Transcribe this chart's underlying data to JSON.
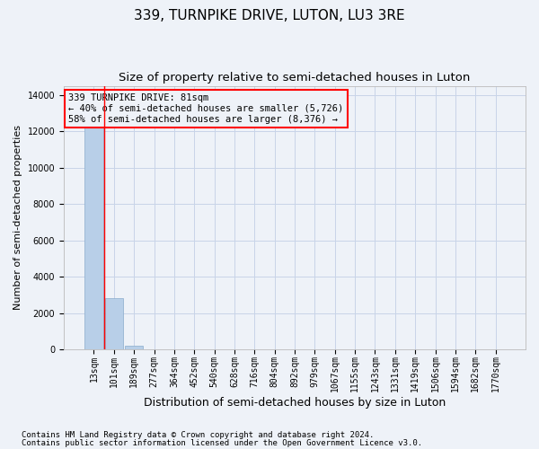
{
  "title": "339, TURNPIKE DRIVE, LUTON, LU3 3RE",
  "subtitle": "Size of property relative to semi-detached houses in Luton",
  "xlabel": "Distribution of semi-detached houses by size in Luton",
  "ylabel": "Number of semi-detached properties",
  "categories": [
    "13sqm",
    "101sqm",
    "189sqm",
    "277sqm",
    "364sqm",
    "452sqm",
    "540sqm",
    "628sqm",
    "716sqm",
    "804sqm",
    "892sqm",
    "979sqm",
    "1067sqm",
    "1155sqm",
    "1243sqm",
    "1331sqm",
    "1419sqm",
    "1506sqm",
    "1594sqm",
    "1682sqm",
    "1770sqm"
  ],
  "values": [
    13500,
    2800,
    200,
    0,
    0,
    0,
    0,
    0,
    0,
    0,
    0,
    0,
    0,
    0,
    0,
    0,
    0,
    0,
    0,
    0,
    0
  ],
  "bar_color": "#b8cfe8",
  "bar_edge_color": "#8aabcc",
  "grid_color": "#c8d4e8",
  "background_color": "#eef2f8",
  "annotation_line1": "339 TURNPIKE DRIVE: 81sqm",
  "annotation_line2": "← 40% of semi-detached houses are smaller (5,726)",
  "annotation_line3": "58% of semi-detached houses are larger (8,376) →",
  "annotation_box_edgecolor": "red",
  "property_line_x": 0.5,
  "ylim": [
    0,
    14500
  ],
  "yticks": [
    0,
    2000,
    4000,
    6000,
    8000,
    10000,
    12000,
    14000
  ],
  "footer1": "Contains HM Land Registry data © Crown copyright and database right 2024.",
  "footer2": "Contains public sector information licensed under the Open Government Licence v3.0.",
  "title_fontsize": 11,
  "subtitle_fontsize": 9.5,
  "xlabel_fontsize": 9,
  "ylabel_fontsize": 8,
  "tick_fontsize": 7,
  "annotation_fontsize": 7.5,
  "footer_fontsize": 6.5
}
